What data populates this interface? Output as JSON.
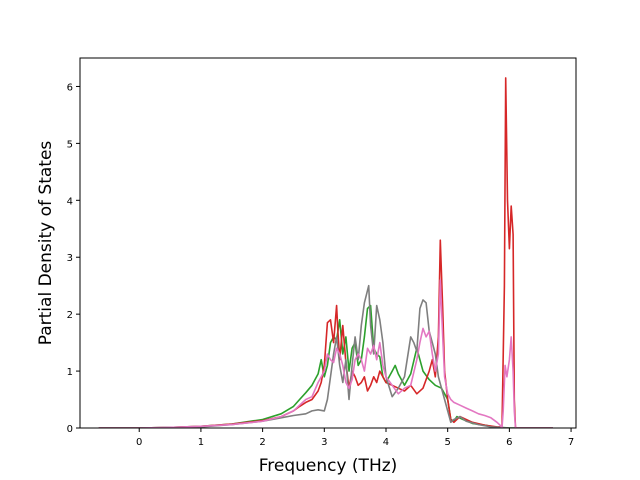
{
  "chart_data": {
    "type": "line",
    "title": "",
    "xlabel": "Frequency (THz)",
    "ylabel": "Partial Density of States",
    "xlim": [
      -0.96,
      7.08
    ],
    "ylim": [
      0,
      6.5
    ],
    "x_ticks": [
      0,
      1,
      2,
      3,
      4,
      5,
      6,
      7
    ],
    "y_ticks": [
      0,
      1,
      2,
      3,
      4,
      5,
      6
    ],
    "x_tick_labels": [
      "0",
      "1",
      "2",
      "3",
      "4",
      "5",
      "6",
      "7"
    ],
    "y_tick_labels": [
      "0",
      "1",
      "2",
      "3",
      "4",
      "5",
      "6"
    ],
    "grid": false,
    "legend": "none",
    "series": [
      {
        "color": "#2ca02c",
        "points": [
          [
            -0.65,
            0.0
          ],
          [
            0.0,
            0.0
          ],
          [
            0.5,
            0.01
          ],
          [
            1.0,
            0.03
          ],
          [
            1.5,
            0.07
          ],
          [
            2.0,
            0.15
          ],
          [
            2.3,
            0.25
          ],
          [
            2.5,
            0.38
          ],
          [
            2.6,
            0.5
          ],
          [
            2.7,
            0.62
          ],
          [
            2.8,
            0.75
          ],
          [
            2.85,
            0.85
          ],
          [
            2.9,
            0.95
          ],
          [
            2.95,
            1.2
          ],
          [
            3.0,
            0.9
          ],
          [
            3.05,
            1.1
          ],
          [
            3.1,
            1.5
          ],
          [
            3.15,
            1.6
          ],
          [
            3.2,
            1.55
          ],
          [
            3.25,
            1.9
          ],
          [
            3.3,
            1.3
          ],
          [
            3.35,
            1.6
          ],
          [
            3.4,
            1.0
          ],
          [
            3.45,
            1.4
          ],
          [
            3.5,
            1.5
          ],
          [
            3.55,
            1.1
          ],
          [
            3.6,
            1.2
          ],
          [
            3.65,
            1.6
          ],
          [
            3.7,
            2.1
          ],
          [
            3.75,
            2.15
          ],
          [
            3.8,
            1.4
          ],
          [
            3.85,
            1.3
          ],
          [
            3.9,
            1.25
          ],
          [
            3.95,
            0.9
          ],
          [
            4.0,
            0.8
          ],
          [
            4.05,
            0.9
          ],
          [
            4.1,
            1.0
          ],
          [
            4.15,
            1.1
          ],
          [
            4.2,
            0.95
          ],
          [
            4.3,
            0.75
          ],
          [
            4.4,
            0.95
          ],
          [
            4.5,
            1.4
          ],
          [
            4.55,
            1.2
          ],
          [
            4.6,
            1.0
          ],
          [
            4.7,
            0.85
          ],
          [
            4.8,
            0.75
          ],
          [
            4.9,
            0.7
          ],
          [
            4.95,
            0.6
          ],
          [
            5.0,
            0.5
          ],
          [
            5.05,
            0.15
          ],
          [
            5.1,
            0.12
          ],
          [
            5.15,
            0.2
          ],
          [
            5.25,
            0.15
          ],
          [
            5.4,
            0.08
          ],
          [
            5.6,
            0.05
          ],
          [
            5.8,
            0.01
          ],
          [
            6.0,
            0.0
          ],
          [
            6.7,
            0.0
          ]
        ]
      },
      {
        "color": "#d62728",
        "points": [
          [
            -0.65,
            0.0
          ],
          [
            0.0,
            0.0
          ],
          [
            0.5,
            0.01
          ],
          [
            1.0,
            0.03
          ],
          [
            1.5,
            0.07
          ],
          [
            2.0,
            0.13
          ],
          [
            2.3,
            0.2
          ],
          [
            2.5,
            0.3
          ],
          [
            2.6,
            0.38
          ],
          [
            2.7,
            0.45
          ],
          [
            2.8,
            0.5
          ],
          [
            2.9,
            0.65
          ],
          [
            2.95,
            0.8
          ],
          [
            3.0,
            1.1
          ],
          [
            3.05,
            1.85
          ],
          [
            3.1,
            1.9
          ],
          [
            3.15,
            1.5
          ],
          [
            3.2,
            2.15
          ],
          [
            3.22,
            1.7
          ],
          [
            3.25,
            1.2
          ],
          [
            3.3,
            1.8
          ],
          [
            3.35,
            1.15
          ],
          [
            3.4,
            0.7
          ],
          [
            3.45,
            1.0
          ],
          [
            3.5,
            0.9
          ],
          [
            3.55,
            0.75
          ],
          [
            3.6,
            0.8
          ],
          [
            3.65,
            0.9
          ],
          [
            3.7,
            0.65
          ],
          [
            3.75,
            0.75
          ],
          [
            3.8,
            0.9
          ],
          [
            3.85,
            0.8
          ],
          [
            3.9,
            1.0
          ],
          [
            4.0,
            0.8
          ],
          [
            4.1,
            0.75
          ],
          [
            4.2,
            0.7
          ],
          [
            4.3,
            0.65
          ],
          [
            4.4,
            0.75
          ],
          [
            4.5,
            0.6
          ],
          [
            4.6,
            0.7
          ],
          [
            4.7,
            1.0
          ],
          [
            4.75,
            1.2
          ],
          [
            4.8,
            0.9
          ],
          [
            4.85,
            1.6
          ],
          [
            4.88,
            3.3
          ],
          [
            4.92,
            2.1
          ],
          [
            4.95,
            1.0
          ],
          [
            5.0,
            0.5
          ],
          [
            5.05,
            0.15
          ],
          [
            5.1,
            0.1
          ],
          [
            5.2,
            0.2
          ],
          [
            5.3,
            0.15
          ],
          [
            5.4,
            0.1
          ],
          [
            5.6,
            0.05
          ],
          [
            5.8,
            0.02
          ],
          [
            5.88,
            0.02
          ],
          [
            5.92,
            2.5
          ],
          [
            5.94,
            6.15
          ],
          [
            5.97,
            4.0
          ],
          [
            6.0,
            3.15
          ],
          [
            6.03,
            3.9
          ],
          [
            6.06,
            3.4
          ],
          [
            6.08,
            0.5
          ],
          [
            6.1,
            0.0
          ],
          [
            6.7,
            0.0
          ]
        ]
      },
      {
        "color": "#7f7f7f",
        "points": [
          [
            -0.65,
            0.0
          ],
          [
            0.0,
            0.0
          ],
          [
            0.5,
            0.01
          ],
          [
            1.0,
            0.02
          ],
          [
            1.5,
            0.06
          ],
          [
            2.0,
            0.12
          ],
          [
            2.3,
            0.18
          ],
          [
            2.5,
            0.22
          ],
          [
            2.7,
            0.25
          ],
          [
            2.8,
            0.3
          ],
          [
            2.9,
            0.32
          ],
          [
            3.0,
            0.3
          ],
          [
            3.05,
            0.5
          ],
          [
            3.1,
            0.9
          ],
          [
            3.15,
            1.3
          ],
          [
            3.2,
            1.6
          ],
          [
            3.25,
            1.1
          ],
          [
            3.3,
            0.8
          ],
          [
            3.35,
            1.2
          ],
          [
            3.4,
            0.5
          ],
          [
            3.45,
            1.1
          ],
          [
            3.5,
            1.6
          ],
          [
            3.55,
            1.2
          ],
          [
            3.6,
            1.8
          ],
          [
            3.65,
            2.2
          ],
          [
            3.72,
            2.5
          ],
          [
            3.75,
            1.8
          ],
          [
            3.8,
            1.3
          ],
          [
            3.85,
            2.15
          ],
          [
            3.9,
            1.9
          ],
          [
            3.95,
            1.5
          ],
          [
            4.0,
            0.9
          ],
          [
            4.1,
            0.55
          ],
          [
            4.2,
            0.7
          ],
          [
            4.3,
            0.9
          ],
          [
            4.4,
            1.6
          ],
          [
            4.45,
            1.5
          ],
          [
            4.5,
            1.35
          ],
          [
            4.55,
            2.1
          ],
          [
            4.6,
            2.25
          ],
          [
            4.65,
            2.2
          ],
          [
            4.7,
            1.7
          ],
          [
            4.75,
            1.5
          ],
          [
            4.8,
            1.3
          ],
          [
            4.85,
            0.9
          ],
          [
            4.9,
            0.7
          ],
          [
            4.95,
            0.5
          ],
          [
            5.0,
            0.3
          ],
          [
            5.05,
            0.1
          ],
          [
            5.1,
            0.15
          ],
          [
            5.2,
            0.2
          ],
          [
            5.3,
            0.12
          ],
          [
            5.5,
            0.06
          ],
          [
            5.7,
            0.02
          ],
          [
            6.0,
            0.0
          ],
          [
            6.7,
            0.0
          ]
        ]
      },
      {
        "color": "#e377c2",
        "points": [
          [
            -0.65,
            0.0
          ],
          [
            0.0,
            0.0
          ],
          [
            0.5,
            0.01
          ],
          [
            1.0,
            0.03
          ],
          [
            1.5,
            0.06
          ],
          [
            2.0,
            0.12
          ],
          [
            2.3,
            0.2
          ],
          [
            2.5,
            0.3
          ],
          [
            2.6,
            0.4
          ],
          [
            2.7,
            0.5
          ],
          [
            2.8,
            0.55
          ],
          [
            2.9,
            0.8
          ],
          [
            3.0,
            1.0
          ],
          [
            3.05,
            1.3
          ],
          [
            3.1,
            1.2
          ],
          [
            3.15,
            1.15
          ],
          [
            3.2,
            1.4
          ],
          [
            3.25,
            1.3
          ],
          [
            3.3,
            1.1
          ],
          [
            3.35,
            0.8
          ],
          [
            3.4,
            0.7
          ],
          [
            3.45,
            0.85
          ],
          [
            3.5,
            1.2
          ],
          [
            3.55,
            1.3
          ],
          [
            3.6,
            1.2
          ],
          [
            3.65,
            1.0
          ],
          [
            3.7,
            1.4
          ],
          [
            3.75,
            1.3
          ],
          [
            3.8,
            1.45
          ],
          [
            3.85,
            1.2
          ],
          [
            3.9,
            1.5
          ],
          [
            3.95,
            1.1
          ],
          [
            4.0,
            0.9
          ],
          [
            4.1,
            0.75
          ],
          [
            4.2,
            0.6
          ],
          [
            4.3,
            0.7
          ],
          [
            4.4,
            0.75
          ],
          [
            4.5,
            1.2
          ],
          [
            4.55,
            1.5
          ],
          [
            4.6,
            1.75
          ],
          [
            4.65,
            1.6
          ],
          [
            4.7,
            1.7
          ],
          [
            4.75,
            1.3
          ],
          [
            4.8,
            1.0
          ],
          [
            4.85,
            1.3
          ],
          [
            4.88,
            2.6
          ],
          [
            4.92,
            1.6
          ],
          [
            4.95,
            0.9
          ],
          [
            5.0,
            0.6
          ],
          [
            5.05,
            0.5
          ],
          [
            5.1,
            0.45
          ],
          [
            5.2,
            0.4
          ],
          [
            5.3,
            0.35
          ],
          [
            5.4,
            0.3
          ],
          [
            5.5,
            0.25
          ],
          [
            5.6,
            0.22
          ],
          [
            5.7,
            0.18
          ],
          [
            5.8,
            0.1
          ],
          [
            5.85,
            0.05
          ],
          [
            5.88,
            0.0
          ],
          [
            5.9,
            0.3
          ],
          [
            5.93,
            1.1
          ],
          [
            5.96,
            0.9
          ],
          [
            6.0,
            1.2
          ],
          [
            6.03,
            1.6
          ],
          [
            6.06,
            1.0
          ],
          [
            6.08,
            0.3
          ],
          [
            6.1,
            0.0
          ],
          [
            6.7,
            0.0
          ]
        ]
      }
    ]
  }
}
